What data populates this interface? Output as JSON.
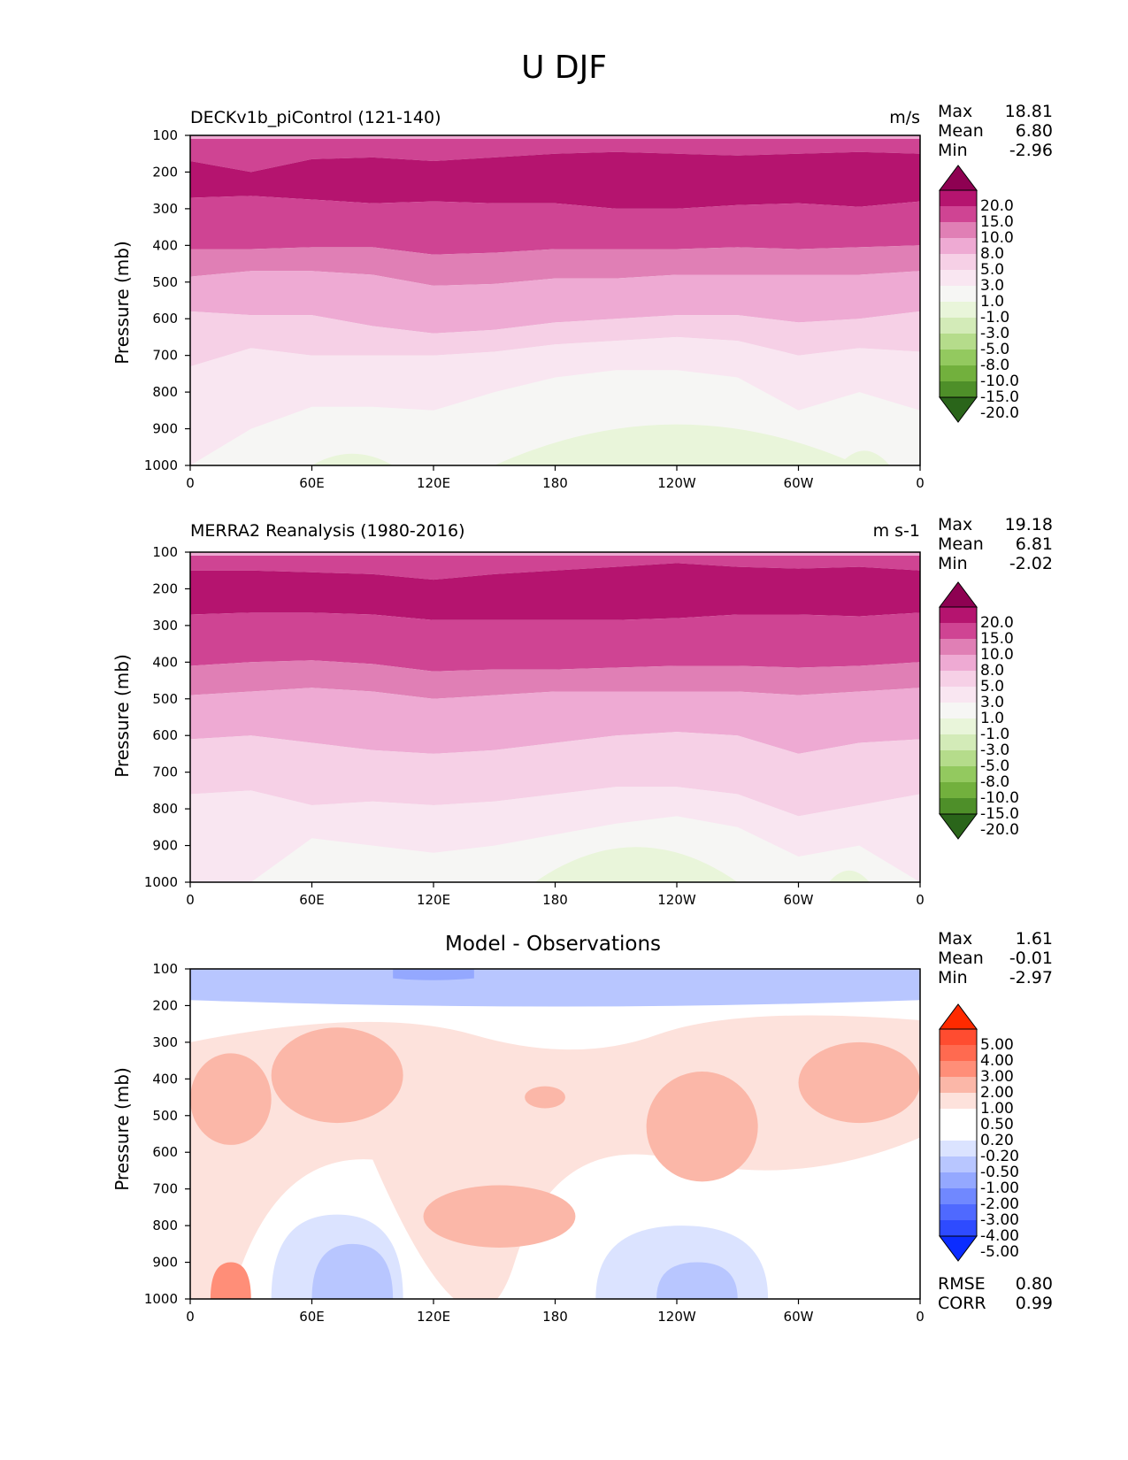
{
  "page_title": "U DJF",
  "panels": [
    {
      "title_left": "DECKv1b_piControl (121-140)",
      "title_right": "m/s",
      "title_center": "",
      "ylabel": "Pressure (mb)",
      "stats": [
        {
          "label": "Max",
          "value": "18.81"
        },
        {
          "label": "Mean",
          "value": "6.80"
        },
        {
          "label": "Min",
          "value": "-2.96"
        }
      ],
      "colorbar_labels": [
        "20.0",
        "15.0",
        "10.0",
        "8.0",
        "5.0",
        "3.0",
        "1.0",
        "-1.0",
        "-3.0",
        "-5.0",
        "-8.0",
        "-10.0",
        "-15.0",
        "-20.0"
      ]
    },
    {
      "title_left": "MERRA2 Reanalysis (1980-2016)",
      "title_right": "m s-1",
      "title_center": "",
      "ylabel": "Pressure (mb)",
      "stats": [
        {
          "label": "Max",
          "value": "19.18"
        },
        {
          "label": "Mean",
          "value": "6.81"
        },
        {
          "label": "Min",
          "value": "-2.02"
        }
      ],
      "colorbar_labels": [
        "20.0",
        "15.0",
        "10.0",
        "8.0",
        "5.0",
        "3.0",
        "1.0",
        "-1.0",
        "-3.0",
        "-5.0",
        "-8.0",
        "-10.0",
        "-15.0",
        "-20.0"
      ]
    },
    {
      "title_left": "",
      "title_right": "",
      "title_center": "Model - Observations",
      "ylabel": "Pressure (mb)",
      "stats": [
        {
          "label": "Max",
          "value": "1.61"
        },
        {
          "label": "Mean",
          "value": "-0.01"
        },
        {
          "label": "Min",
          "value": "-2.97"
        }
      ],
      "colorbar_labels": [
        "5.00",
        "4.00",
        "3.00",
        "2.00",
        "1.00",
        "0.50",
        "0.20",
        "-0.20",
        "-0.50",
        "-1.00",
        "-2.00",
        "-3.00",
        "-4.00",
        "-5.00"
      ]
    }
  ],
  "metrics": [
    {
      "label": "RMSE",
      "value": "0.80"
    },
    {
      "label": "CORR",
      "value": "0.99"
    }
  ],
  "colors": {
    "wind_levels": [
      "#8e0152",
      "#b5146f",
      "#cf4493",
      "#e07fb5",
      "#eeaad3",
      "#f6d0e6",
      "#f9e6f1",
      "#f6f6f4",
      "#e9f5da",
      "#d3ebb8",
      "#b5dc8b",
      "#93c95f",
      "#72b03d",
      "#4e8f29",
      "#2a651a"
    ],
    "diff_levels": [
      "#ff2a00",
      "#ff4c30",
      "#ff6a50",
      "#ff8e78",
      "#fbb7a8",
      "#fde2dc",
      "#ffffff",
      "#ffffff",
      "#dbe3ff",
      "#b8c6ff",
      "#94a8ff",
      "#7088ff",
      "#4f69ff",
      "#2e4bff",
      "#0b2cff"
    ]
  },
  "chart_data": [
    {
      "type": "heatmap",
      "title": "DECKv1b_piControl (121-140)",
      "units": "m/s",
      "xlabel": "",
      "ylabel": "Pressure (mb)",
      "x_ticks": [
        "0",
        "60E",
        "120E",
        "180",
        "120W",
        "60W",
        "0"
      ],
      "x_tick_values": [
        0,
        60,
        120,
        180,
        240,
        300,
        360
      ],
      "xlim": [
        0,
        360
      ],
      "y_ticks": [
        100,
        200,
        300,
        400,
        500,
        600,
        700,
        800,
        900,
        1000
      ],
      "ylim": [
        1000,
        100
      ],
      "levels": [
        -20,
        -15,
        -10,
        -8,
        -5,
        -3,
        -1,
        1,
        3,
        5,
        8,
        10,
        15,
        20
      ],
      "contour_boundaries_mb": {
        "lon": [
          0,
          30,
          60,
          90,
          120,
          150,
          180,
          210,
          240,
          270,
          300,
          330,
          360
        ],
        "u15_top": [
          170,
          200,
          165,
          160,
          170,
          160,
          150,
          145,
          150,
          155,
          150,
          145,
          150
        ],
        "u15_bottom": [
          270,
          265,
          275,
          285,
          280,
          285,
          285,
          300,
          300,
          290,
          285,
          295,
          280
        ],
        "u10_bottom": [
          410,
          410,
          405,
          405,
          425,
          420,
          410,
          410,
          410,
          405,
          410,
          405,
          400
        ],
        "u8_bottom": [
          485,
          470,
          470,
          480,
          510,
          505,
          490,
          490,
          480,
          480,
          480,
          480,
          470
        ],
        "u5_bottom": [
          580,
          590,
          590,
          620,
          640,
          630,
          610,
          600,
          590,
          590,
          610,
          600,
          580
        ],
        "u3_bottom": [
          730,
          680,
          700,
          700,
          700,
          690,
          670,
          660,
          650,
          660,
          700,
          680,
          690
        ],
        "u1_bottom": [
          1000,
          900,
          840,
          840,
          850,
          800,
          760,
          740,
          740,
          760,
          850,
          800,
          850
        ]
      },
      "stats": {
        "max": 18.81,
        "mean": 6.8,
        "min": -2.96
      }
    },
    {
      "type": "heatmap",
      "title": "MERRA2 Reanalysis (1980-2016)",
      "units": "m s-1",
      "xlabel": "",
      "ylabel": "Pressure (mb)",
      "x_ticks": [
        "0",
        "60E",
        "120E",
        "180",
        "120W",
        "60W",
        "0"
      ],
      "x_tick_values": [
        0,
        60,
        120,
        180,
        240,
        300,
        360
      ],
      "xlim": [
        0,
        360
      ],
      "y_ticks": [
        100,
        200,
        300,
        400,
        500,
        600,
        700,
        800,
        900,
        1000
      ],
      "ylim": [
        1000,
        100
      ],
      "levels": [
        -20,
        -15,
        -10,
        -8,
        -5,
        -3,
        -1,
        1,
        3,
        5,
        8,
        10,
        15,
        20
      ],
      "contour_boundaries_mb": {
        "lon": [
          0,
          30,
          60,
          90,
          120,
          150,
          180,
          210,
          240,
          270,
          300,
          330,
          360
        ],
        "u15_top": [
          150,
          150,
          155,
          160,
          175,
          160,
          150,
          140,
          130,
          140,
          145,
          140,
          150
        ],
        "u15_bottom": [
          270,
          265,
          265,
          270,
          285,
          285,
          285,
          285,
          280,
          270,
          270,
          275,
          265
        ],
        "u10_bottom": [
          410,
          400,
          395,
          405,
          425,
          420,
          420,
          415,
          410,
          410,
          415,
          410,
          400
        ],
        "u8_bottom": [
          490,
          480,
          470,
          480,
          500,
          490,
          480,
          480,
          480,
          480,
          490,
          480,
          470
        ],
        "u5_bottom": [
          610,
          600,
          620,
          640,
          650,
          640,
          620,
          600,
          590,
          600,
          650,
          620,
          610
        ],
        "u3_bottom": [
          760,
          750,
          790,
          780,
          790,
          780,
          760,
          740,
          740,
          760,
          820,
          790,
          760
        ],
        "u1_bottom": [
          1000,
          1000,
          880,
          900,
          920,
          900,
          870,
          840,
          820,
          850,
          930,
          900,
          1000
        ]
      },
      "stats": {
        "max": 19.18,
        "mean": 6.81,
        "min": -2.02
      }
    },
    {
      "type": "heatmap",
      "title": "Model - Observations",
      "xlabel": "",
      "ylabel": "Pressure (mb)",
      "x_ticks": [
        "0",
        "60E",
        "120E",
        "180",
        "120W",
        "60W",
        "0"
      ],
      "x_tick_values": [
        0,
        60,
        120,
        180,
        240,
        300,
        360
      ],
      "xlim": [
        0,
        360
      ],
      "y_ticks": [
        100,
        200,
        300,
        400,
        500,
        600,
        700,
        800,
        900,
        1000
      ],
      "ylim": [
        1000,
        100
      ],
      "levels": [
        -5,
        -4,
        -3,
        -2,
        -1,
        -0.5,
        -0.2,
        0.2,
        0.5,
        1,
        2,
        3,
        4,
        5
      ],
      "regions": [
        {
          "level": "-1.00 to -0.50",
          "lon": [
            0,
            360
          ],
          "p": [
            100,
            200
          ]
        },
        {
          "level": "-2.00 to -1.00",
          "lon": [
            100,
            140
          ],
          "p": [
            100,
            130
          ]
        },
        {
          "level": "0.50 to 1.00",
          "lon": [
            0,
            40
          ],
          "p": [
            330,
            580
          ]
        },
        {
          "level": "0.50 to 1.00",
          "lon": [
            40,
            105
          ],
          "p": [
            260,
            520
          ]
        },
        {
          "level": "0.50 to 1.00",
          "lon": [
            165,
            185
          ],
          "p": [
            420,
            480
          ]
        },
        {
          "level": "0.50 to 1.00",
          "lon": [
            115,
            190
          ],
          "p": [
            690,
            860
          ]
        },
        {
          "level": "0.50 to 1.00",
          "lon": [
            225,
            280
          ],
          "p": [
            380,
            680
          ]
        },
        {
          "level": "0.50 to 1.00",
          "lon": [
            300,
            360
          ],
          "p": [
            300,
            520
          ]
        },
        {
          "level": "1.00 to 2.00",
          "lon": [
            10,
            30
          ],
          "p": [
            900,
            1000
          ]
        },
        {
          "level": "-0.50 to -0.20",
          "lon": [
            40,
            105
          ],
          "p": [
            770,
            1000
          ]
        },
        {
          "level": "-0.50 to -0.20",
          "lon": [
            200,
            285
          ],
          "p": [
            800,
            1000
          ]
        },
        {
          "level": "-1.00 to -0.50",
          "lon": [
            60,
            100
          ],
          "p": [
            850,
            1000
          ]
        },
        {
          "level": "-1.00 to -0.50",
          "lon": [
            230,
            270
          ],
          "p": [
            900,
            1000
          ]
        }
      ],
      "stats": {
        "max": 1.61,
        "mean": -0.01,
        "min": -2.97
      },
      "rmse": 0.8,
      "corr": 0.99
    }
  ]
}
